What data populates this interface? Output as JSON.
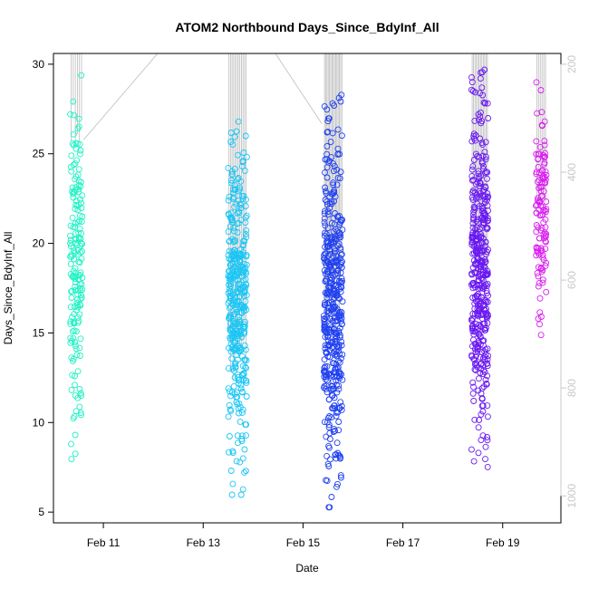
{
  "chart_data": {
    "type": "scatter",
    "title": "ATOM2 Northbound Days_Since_BdyInf_All",
    "xlabel": "Date",
    "ylabel": "Days_Since_BdyInf_All",
    "xlim": [
      "2025-02-10T00:00",
      "2025-02-20T04:00"
    ],
    "ylim": [
      4.4,
      30.6
    ],
    "y_ticks": [
      5,
      10,
      15,
      20,
      25,
      30
    ],
    "x_ticks": [
      {
        "label": "Feb 11",
        "date": "2025-02-11"
      },
      {
        "label": "Feb 13",
        "date": "2025-02-13"
      },
      {
        "label": "Feb 15",
        "date": "2025-02-15"
      },
      {
        "label": "Feb 17",
        "date": "2025-02-17"
      },
      {
        "label": "Feb 19",
        "date": "2025-02-19"
      }
    ],
    "right_axis": {
      "label": "",
      "lim": [
        180,
        1050
      ],
      "reversed": true,
      "ticks": [
        200,
        400,
        600,
        800,
        1000
      ],
      "color": "#c8c8c8"
    },
    "grid": false,
    "legend": "none",
    "marker": "open-circle",
    "series": [
      {
        "color": "#1ff2c4",
        "x_range": [
          "2025-02-10T08:00",
          "2025-02-10T14:00"
        ],
        "y_range": [
          7.4,
          29.8
        ],
        "approx_points": 180
      },
      {
        "color": "#19c6f5",
        "x_range": [
          "2025-02-13T12:00",
          "2025-02-13T21:00"
        ],
        "y_range": [
          5.9,
          27.1
        ],
        "approx_points": 380
      },
      {
        "color": "#2040f0",
        "x_range": [
          "2025-02-15T10:00",
          "2025-02-15T19:00"
        ],
        "y_range": [
          5.2,
          28.3
        ],
        "approx_points": 450
      },
      {
        "color": "#6a19f2",
        "x_range": [
          "2025-02-18T09:00",
          "2025-02-18T17:00"
        ],
        "y_range": [
          7.5,
          29.9
        ],
        "approx_points": 420
      },
      {
        "color": "#d91cf0",
        "x_range": [
          "2025-02-19T16:00",
          "2025-02-19T21:00"
        ],
        "y_range": [
          14.2,
          29.0
        ],
        "approx_points": 120
      }
    ]
  }
}
